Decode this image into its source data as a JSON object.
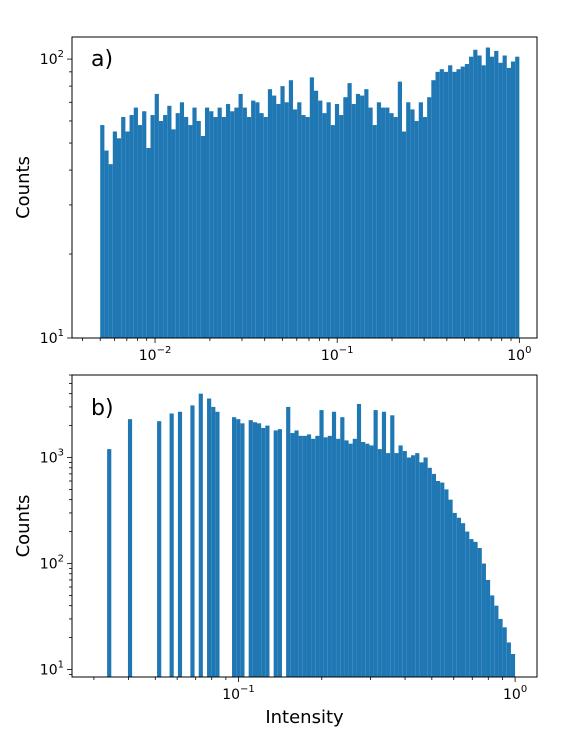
{
  "colors": {
    "bar": "#1f77b4",
    "frame": "#000000",
    "background": "#ffffff"
  },
  "chart_data": [
    {
      "type": "bar",
      "panel_label": "a)",
      "xlabel": "",
      "ylabel": "Counts",
      "xscale": "log",
      "yscale": "log",
      "xlim": [
        0.0035,
        1.25
      ],
      "ylim": [
        10,
        120
      ],
      "x_ticks": [
        {
          "value": 0.01,
          "base": "10",
          "exp": "−2"
        },
        {
          "value": 0.1,
          "base": "10",
          "exp": "−1"
        },
        {
          "value": 1,
          "base": "10",
          "exp": "0"
        }
      ],
      "y_ticks": [
        {
          "value": 10,
          "base": "10",
          "exp": "1"
        },
        {
          "value": 100,
          "base": "10",
          "exp": "2"
        }
      ],
      "bins": {
        "start": 0.005,
        "end": 1.0,
        "count": 100
      },
      "values": [
        58,
        47,
        42,
        55,
        52,
        62,
        55,
        63,
        67,
        58,
        65,
        48,
        63,
        75,
        60,
        63,
        68,
        56,
        64,
        70,
        62,
        58,
        67,
        60,
        53,
        67,
        65,
        62,
        67,
        62,
        69,
        65,
        67,
        75,
        67,
        62,
        71,
        70,
        64,
        62,
        78,
        74,
        69,
        80,
        70,
        84,
        66,
        70,
        63,
        62,
        86,
        77,
        71,
        64,
        70,
        58,
        69,
        63,
        73,
        82,
        69,
        75,
        74,
        78,
        67,
        58,
        70,
        67,
        67,
        64,
        62,
        83,
        55,
        70,
        66,
        60,
        70,
        62,
        73,
        84,
        90,
        92,
        90,
        95,
        90,
        92,
        94,
        96,
        102,
        108,
        103,
        95,
        110,
        102,
        107,
        97,
        103,
        93,
        98,
        102
      ]
    },
    {
      "type": "bar",
      "panel_label": "b)",
      "xlabel": "Intensity",
      "ylabel": "Counts",
      "xscale": "log",
      "yscale": "log",
      "xlim": [
        0.025,
        1.2
      ],
      "ylim": [
        8.5,
        6000
      ],
      "x_ticks": [
        {
          "value": 0.1,
          "base": "10",
          "exp": "−1"
        },
        {
          "value": 1,
          "base": "10",
          "exp": "0"
        }
      ],
      "y_ticks": [
        {
          "value": 10,
          "base": "10",
          "exp": "1"
        },
        {
          "value": 100,
          "base": "10",
          "exp": "2"
        },
        {
          "value": 1000,
          "base": "10",
          "exp": "3"
        }
      ],
      "bins": {
        "start": 0.03125,
        "end": 1.0,
        "count": 100
      },
      "values": [
        0,
        0,
        1200,
        0,
        0,
        0,
        0,
        2300,
        0,
        0,
        0,
        0,
        0,
        0,
        2200,
        0,
        0,
        2600,
        0,
        2700,
        0,
        0,
        3100,
        0,
        4000,
        0,
        3600,
        3000,
        2700,
        0,
        0,
        0,
        2400,
        2300,
        2100,
        0,
        2250,
        2150,
        2100,
        1900,
        2000,
        0,
        1800,
        1850,
        0,
        3000,
        1700,
        1800,
        1600,
        1600,
        1650,
        1500,
        1600,
        2800,
        1550,
        1600,
        2700,
        1500,
        2400,
        1450,
        1350,
        1500,
        3200,
        1400,
        1350,
        1300,
        2800,
        1200,
        2700,
        1100,
        2500,
        1100,
        1300,
        1150,
        1000,
        1050,
        1100,
        900,
        1000,
        800,
        700,
        600,
        580,
        500,
        400,
        300,
        270,
        240,
        200,
        170,
        160,
        140,
        100,
        70,
        50,
        40,
        30,
        25,
        18,
        14
      ]
    }
  ]
}
